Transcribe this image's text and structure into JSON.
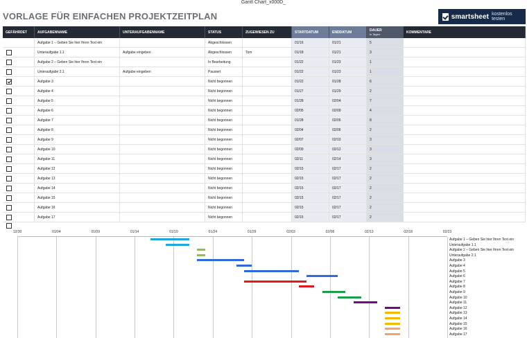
{
  "document": {
    "tab_title": "Gantt Chart_x000D_"
  },
  "sheet": {
    "title": "VORLAGE FÜR EINFACHEN PROJEKTZEITPLAN"
  },
  "brand": {
    "name": "smartsheet",
    "cta": "kostenlos testen",
    "color": "#162a4a",
    "icon": "smartsheet-check-logo"
  },
  "table": {
    "headers": {
      "flag": "GEFÄHRDET",
      "task": "AUFGABENNAME",
      "subtask": "UNTERAUFGABENNAME",
      "status": "STATUS",
      "assigned": "ZUGEWIESEN ZU",
      "start": "STARTDATUM",
      "end": "ENDDATUM",
      "duration": "DAUER",
      "duration_unit": "in Tagen",
      "comments": "KOMMENTARE"
    },
    "rows": [
      {
        "flag": null,
        "task": "Aufgabe 1 – Geben Sie hier Ihren Text ein",
        "subtask": "",
        "status": "Abgeschlossen",
        "assigned": "",
        "start": "01/16",
        "end": "01/21",
        "duration": "5",
        "comment": ""
      },
      {
        "flag": false,
        "task": "Unteraufgabe 1.1",
        "subtask": "Aufgabe eingeben",
        "status": "Abgeschlossen",
        "assigned": "Tom",
        "start": "01/18",
        "end": "01/21",
        "duration": "3",
        "comment": ""
      },
      {
        "flag": false,
        "task": "Aufgabe 2 – Geben Sie hier Ihren Text ein",
        "subtask": "",
        "status": "In Bearbeitung",
        "assigned": "",
        "start": "01/22",
        "end": "01/23",
        "duration": "1",
        "comment": ""
      },
      {
        "flag": false,
        "task": "Unteraufgabe 2.1",
        "subtask": "Aufgabe eingeben",
        "status": "Pausiert",
        "assigned": "",
        "start": "01/22",
        "end": "01/23",
        "duration": "1",
        "comment": ""
      },
      {
        "flag": true,
        "task": "Aufgabe 3",
        "subtask": "",
        "status": "Nicht begonnen",
        "assigned": "",
        "start": "01/22",
        "end": "01/28",
        "duration": "6",
        "comment": ""
      },
      {
        "flag": false,
        "task": "Aufgabe 4",
        "subtask": "",
        "status": "Nicht begonnen",
        "assigned": "",
        "start": "01/27",
        "end": "01/29",
        "duration": "2",
        "comment": ""
      },
      {
        "flag": false,
        "task": "Aufgabe 5",
        "subtask": "",
        "status": "Nicht begonnen",
        "assigned": "",
        "start": "01/28",
        "end": "02/04",
        "duration": "7",
        "comment": ""
      },
      {
        "flag": false,
        "task": "Aufgabe 6",
        "subtask": "",
        "status": "Nicht begonnen",
        "assigned": "",
        "start": "02/05",
        "end": "02/09",
        "duration": "4",
        "comment": ""
      },
      {
        "flag": false,
        "task": "Aufgabe 7",
        "subtask": "",
        "status": "Nicht begonnen",
        "assigned": "",
        "start": "01/28",
        "end": "02/05",
        "duration": "8",
        "comment": ""
      },
      {
        "flag": false,
        "task": "Aufgabe 8",
        "subtask": "",
        "status": "Nicht begonnen",
        "assigned": "",
        "start": "02/04",
        "end": "02/06",
        "duration": "2",
        "comment": ""
      },
      {
        "flag": false,
        "task": "Aufgabe 9",
        "subtask": "",
        "status": "Nicht begonnen",
        "assigned": "",
        "start": "02/07",
        "end": "02/10",
        "duration": "3",
        "comment": ""
      },
      {
        "flag": false,
        "task": "Aufgabe 10",
        "subtask": "",
        "status": "Nicht begonnen",
        "assigned": "",
        "start": "02/09",
        "end": "02/12",
        "duration": "3",
        "comment": ""
      },
      {
        "flag": false,
        "task": "Aufgabe 11",
        "subtask": "",
        "status": "Nicht begonnen",
        "assigned": "",
        "start": "02/11",
        "end": "02/14",
        "duration": "3",
        "comment": ""
      },
      {
        "flag": false,
        "task": "Aufgabe 12",
        "subtask": "",
        "status": "Nicht begonnen",
        "assigned": "",
        "start": "02/15",
        "end": "02/17",
        "duration": "2",
        "comment": ""
      },
      {
        "flag": false,
        "task": "Aufgabe 13",
        "subtask": "",
        "status": "Nicht begonnen",
        "assigned": "",
        "start": "02/15",
        "end": "02/17",
        "duration": "2",
        "comment": ""
      },
      {
        "flag": false,
        "task": "Aufgabe 14",
        "subtask": "",
        "status": "Nicht begonnen",
        "assigned": "",
        "start": "02/15",
        "end": "02/17",
        "duration": "2",
        "comment": ""
      },
      {
        "flag": false,
        "task": "Aufgabe 15",
        "subtask": "",
        "status": "Nicht begonnen",
        "assigned": "",
        "start": "02/15",
        "end": "02/17",
        "duration": "2",
        "comment": ""
      },
      {
        "flag": false,
        "task": "Aufgabe 16",
        "subtask": "",
        "status": "Nicht begonnen",
        "assigned": "",
        "start": "02/15",
        "end": "02/17",
        "duration": "2",
        "comment": ""
      },
      {
        "flag": false,
        "task": "Aufgabe 17",
        "subtask": "",
        "status": "Nicht begonnen",
        "assigned": "",
        "start": "02/15",
        "end": "02/17",
        "duration": "2",
        "comment": ""
      }
    ],
    "extra_checkbox": false
  },
  "chart_data": {
    "type": "gantt",
    "title": "",
    "x_axis": {
      "ticks": [
        "12/30",
        "01/04",
        "01/09",
        "01/14",
        "01/19",
        "01/24",
        "01/29",
        "02/03",
        "02/08",
        "02/13",
        "02/18",
        "02/23"
      ],
      "range": [
        "12/30",
        "02/23"
      ]
    },
    "grid": true,
    "series": [
      {
        "label": "Aufgabe 1 – Geben Sie hier Ihren Text ein",
        "start": "01/16",
        "end": "01/21",
        "color": "#1ea7dc"
      },
      {
        "label": "Unteraufgabe 1.1",
        "start": "01/18",
        "end": "01/21",
        "color": "#1ea7dc"
      },
      {
        "label": "Aufgabe 2 – Geben Sie hier Ihren Text ein",
        "start": "01/22",
        "end": "01/23",
        "color": "#8cc63f"
      },
      {
        "label": "Unteraufgabe 2.1",
        "start": "01/22",
        "end": "01/23",
        "color": "#8cc63f"
      },
      {
        "label": "Aufgabe 3",
        "start": "01/22",
        "end": "01/28",
        "color": "#2f6bd8"
      },
      {
        "label": "Aufgabe 4",
        "start": "01/27",
        "end": "01/29",
        "color": "#2f6bd8"
      },
      {
        "label": "Aufgabe 5",
        "start": "01/28",
        "end": "02/04",
        "color": "#2f6bd8"
      },
      {
        "label": "Aufgabe 6",
        "start": "02/05",
        "end": "02/09",
        "color": "#2f6bd8"
      },
      {
        "label": "Aufgabe 7",
        "start": "01/28",
        "end": "02/05",
        "color": "#e0191e"
      },
      {
        "label": "Aufgabe 8",
        "start": "02/04",
        "end": "02/06",
        "color": "#e0191e"
      },
      {
        "label": "Aufgabe 9",
        "start": "02/07",
        "end": "02/10",
        "color": "#1a9e4a"
      },
      {
        "label": "Aufgabe 10",
        "start": "02/09",
        "end": "02/12",
        "color": "#1a9e4a"
      },
      {
        "label": "Aufgabe 11",
        "start": "02/11",
        "end": "02/14",
        "color": "#6b0f7a"
      },
      {
        "label": "Aufgabe 12",
        "start": "02/15",
        "end": "02/17",
        "color": "#6b0f7a"
      },
      {
        "label": "Aufgabe 13",
        "start": "02/15",
        "end": "02/17",
        "color": "#f5b800"
      },
      {
        "label": "Aufgabe 14",
        "start": "02/15",
        "end": "02/17",
        "color": "#f5b800"
      },
      {
        "label": "Aufgabe 15",
        "start": "02/15",
        "end": "02/17",
        "color": "#f5b800"
      },
      {
        "label": "Aufgabe 16",
        "start": "02/15",
        "end": "02/17",
        "color": "#f4a46a"
      },
      {
        "label": "Aufgabe 17",
        "start": "02/15",
        "end": "02/17",
        "color": "#f4a46a"
      }
    ]
  }
}
